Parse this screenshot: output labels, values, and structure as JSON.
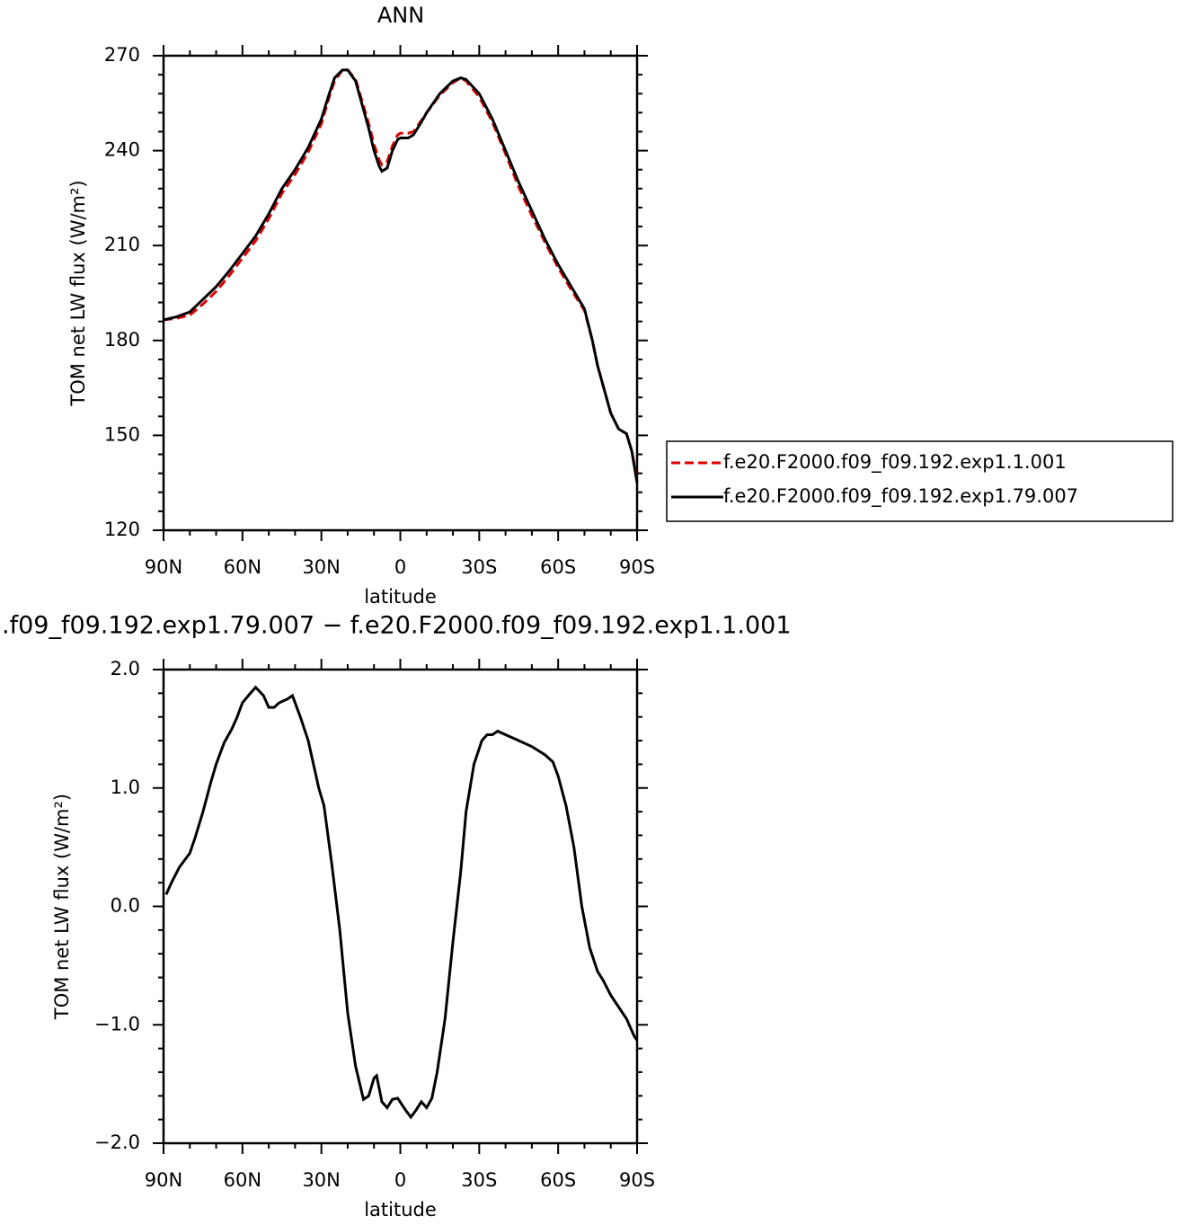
{
  "chart_data": [
    {
      "type": "line",
      "title": "ANN",
      "x_label": "latitude",
      "y_label": "TOM net LW flux (W/m²)",
      "x": [
        90,
        85,
        80,
        75,
        70,
        65,
        60,
        55,
        50,
        45,
        40,
        35,
        30,
        27,
        25,
        22,
        20,
        17,
        15,
        12,
        10,
        8,
        7,
        5,
        3,
        1,
        0,
        -3,
        -5,
        -8,
        -10,
        -15,
        -20,
        -23,
        -25,
        -30,
        -35,
        -40,
        -45,
        -50,
        -55,
        -60,
        -65,
        -70,
        -73,
        -75,
        -78,
        -80,
        -83,
        -86,
        -88,
        -90
      ],
      "series": [
        {
          "name": "f.e20.F2000.f09_f09.192.exp1.1.001",
          "color": "#e00000",
          "line_style": "dashed",
          "values": [
            186.5,
            187,
            188,
            191.5,
            195.5,
            200.5,
            206,
            211.5,
            218.5,
            226.5,
            232.5,
            239.5,
            248.5,
            257,
            262,
            265.5,
            265.5,
            262.5,
            257,
            248.5,
            242,
            237,
            235.5,
            236.5,
            241.5,
            245,
            245.5,
            245.5,
            246,
            249.5,
            252,
            257.5,
            261.5,
            263,
            262,
            257,
            249,
            239,
            228.5,
            219.5,
            211,
            203,
            196,
            189.5,
            180,
            172,
            163,
            157,
            152,
            150.5,
            145,
            136
          ]
        },
        {
          "name": "f.e20.F2000.f09_f09.192.exp1.79.007",
          "color": "#000000",
          "line_style": "solid",
          "values": [
            186.5,
            187.5,
            189,
            193,
            197,
            202,
            207.5,
            213,
            220,
            228,
            234,
            241,
            250,
            258,
            263,
            265.5,
            265.5,
            262,
            256,
            247,
            240,
            235,
            233.5,
            234.5,
            240,
            243.5,
            244,
            244,
            245,
            249,
            252,
            258,
            262,
            263,
            262.5,
            258,
            250,
            240,
            230,
            221,
            212,
            204,
            197,
            190,
            180,
            172,
            163,
            157,
            152,
            150.5,
            145,
            135
          ]
        }
      ],
      "xlim": [
        90,
        -90
      ],
      "xticks": [
        {
          "value": 90,
          "label": "90N"
        },
        {
          "value": 60,
          "label": "60N"
        },
        {
          "value": 30,
          "label": "30N"
        },
        0,
        {
          "value": -30,
          "label": "30S"
        },
        {
          "value": -60,
          "label": "60S"
        },
        {
          "value": -90,
          "label": "90S"
        }
      ],
      "ylim": [
        120,
        270
      ],
      "yticks": [
        120,
        150,
        180,
        210,
        240,
        270
      ],
      "legend": "right"
    },
    {
      "type": "line",
      "title": ".f09_f09.192.exp1.79.007 − f.e20.F2000.f09_f09.192.exp1.1.001",
      "x_label": "latitude",
      "y_label": "TOM net LW flux (W/m²)",
      "x": [
        89,
        87,
        84,
        80,
        78,
        75,
        72,
        70,
        67,
        64,
        62,
        60,
        57,
        55,
        52,
        50,
        48,
        46,
        43,
        41,
        38,
        35,
        33,
        31,
        29,
        26,
        23,
        20,
        17,
        14,
        12,
        10,
        9,
        7,
        5,
        3,
        1,
        -2,
        -4,
        -6,
        -8,
        -10,
        -12,
        -14,
        -17,
        -20,
        -23,
        -25,
        -28,
        -31,
        -33,
        -35,
        -37,
        -40,
        -45,
        -50,
        -55,
        -58,
        -60,
        -63,
        -66,
        -69,
        -72,
        -75,
        -77,
        -80,
        -83,
        -86,
        -89,
        -90
      ],
      "series": [
        {
          "color": "#000000",
          "line_style": "solid",
          "values": [
            0.1,
            0.2,
            0.33,
            0.45,
            0.58,
            0.8,
            1.05,
            1.2,
            1.38,
            1.5,
            1.6,
            1.72,
            1.8,
            1.85,
            1.78,
            1.68,
            1.68,
            1.72,
            1.75,
            1.78,
            1.6,
            1.4,
            1.2,
            1.0,
            0.85,
            0.35,
            -0.2,
            -0.9,
            -1.35,
            -1.63,
            -1.6,
            -1.45,
            -1.43,
            -1.65,
            -1.7,
            -1.63,
            -1.62,
            -1.72,
            -1.78,
            -1.72,
            -1.65,
            -1.7,
            -1.62,
            -1.4,
            -0.95,
            -0.3,
            0.3,
            0.8,
            1.2,
            1.4,
            1.45,
            1.45,
            1.48,
            1.45,
            1.4,
            1.35,
            1.28,
            1.22,
            1.1,
            0.85,
            0.5,
            0.0,
            -0.35,
            -0.55,
            -0.62,
            -0.75,
            -0.85,
            -0.95,
            -1.1,
            -1.13
          ]
        }
      ],
      "xlim": [
        90,
        -90
      ],
      "xticks": [
        {
          "value": 90,
          "label": "90N"
        },
        {
          "value": 60,
          "label": "60N"
        },
        {
          "value": 30,
          "label": "30N"
        },
        0,
        {
          "value": -30,
          "label": "30S"
        },
        {
          "value": -60,
          "label": "60S"
        },
        {
          "value": -90,
          "label": "90S"
        }
      ],
      "ylim": [
        -2,
        2
      ],
      "yticks": [
        {
          "value": -2,
          "label": "−2.0"
        },
        {
          "value": -1,
          "label": "−1.0"
        },
        {
          "value": 0,
          "label": "0.0"
        },
        {
          "value": 1,
          "label": "1.0"
        },
        {
          "value": 2,
          "label": "2.0"
        }
      ]
    }
  ]
}
